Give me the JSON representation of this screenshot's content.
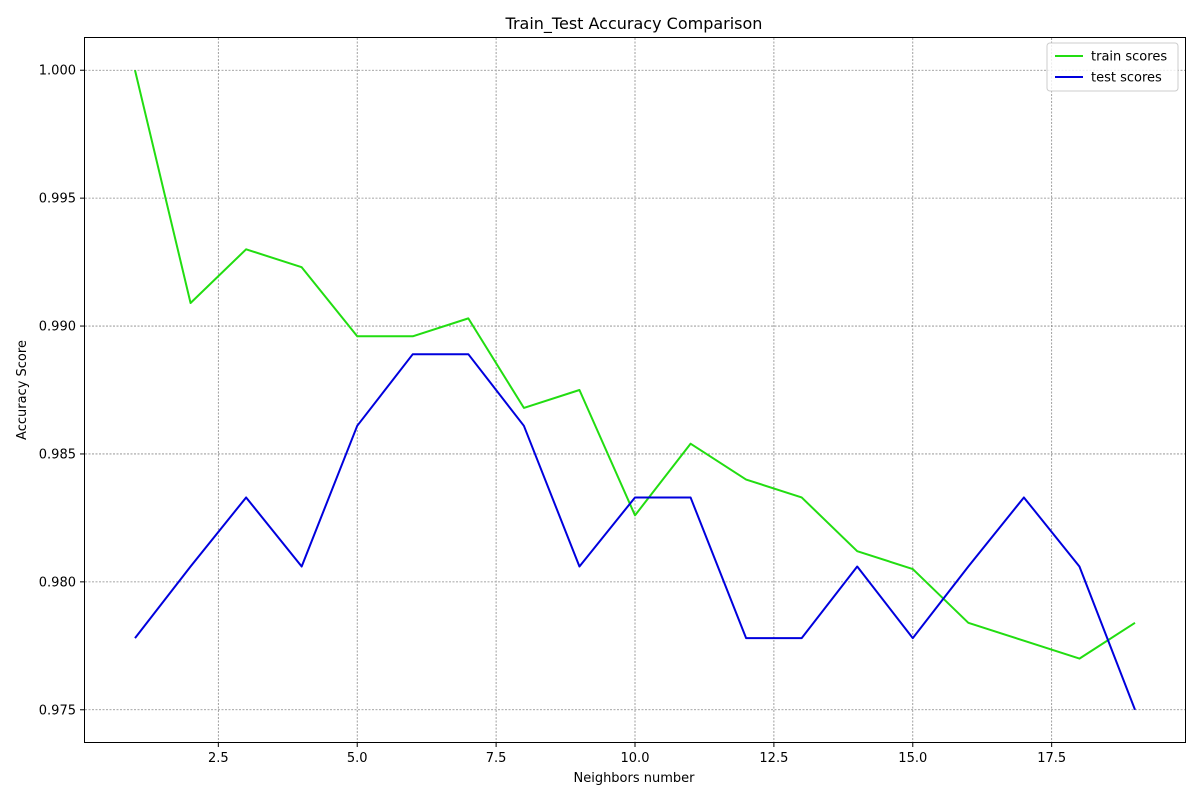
{
  "chart_data": {
    "type": "line",
    "title": "Train_Test Accuracy Comparison",
    "xlabel": "Neighbors number",
    "ylabel": "Accuracy Score",
    "x": [
      1,
      2,
      3,
      4,
      5,
      6,
      7,
      8,
      9,
      10,
      11,
      12,
      13,
      14,
      15,
      16,
      17,
      18,
      19
    ],
    "series": [
      {
        "name": "train scores",
        "color": "#22dd11",
        "values": [
          1.0,
          0.9909,
          0.993,
          0.9923,
          0.9896,
          0.9896,
          0.9903,
          0.9868,
          0.9875,
          0.9826,
          0.9854,
          0.984,
          0.9833,
          0.9812,
          0.9805,
          0.9784,
          0.9777,
          0.977,
          0.9784
        ]
      },
      {
        "name": "test scores",
        "color": "#0000dd",
        "values": [
          0.9778,
          0.9806,
          0.9833,
          0.9806,
          0.9861,
          0.9889,
          0.9889,
          0.9861,
          0.9806,
          0.9833,
          0.9833,
          0.9778,
          0.9778,
          0.9806,
          0.9778,
          0.9806,
          0.9833,
          0.9806,
          0.975
        ]
      }
    ],
    "xlim": [
      0.1,
      19.9
    ],
    "ylim": [
      0.97374,
      1.00126
    ],
    "xticks": [
      2.5,
      5.0,
      7.5,
      10.0,
      12.5,
      15.0,
      17.5
    ],
    "xtick_labels": [
      "2.5",
      "5.0",
      "7.5",
      "10.0",
      "12.5",
      "15.0",
      "17.5"
    ],
    "yticks": [
      0.975,
      0.98,
      0.985,
      0.99,
      0.995,
      1.0
    ],
    "ytick_labels": [
      "0.975",
      "0.980",
      "0.985",
      "0.990",
      "0.995",
      "1.000"
    ],
    "grid": true,
    "legend_position": "top-right"
  }
}
